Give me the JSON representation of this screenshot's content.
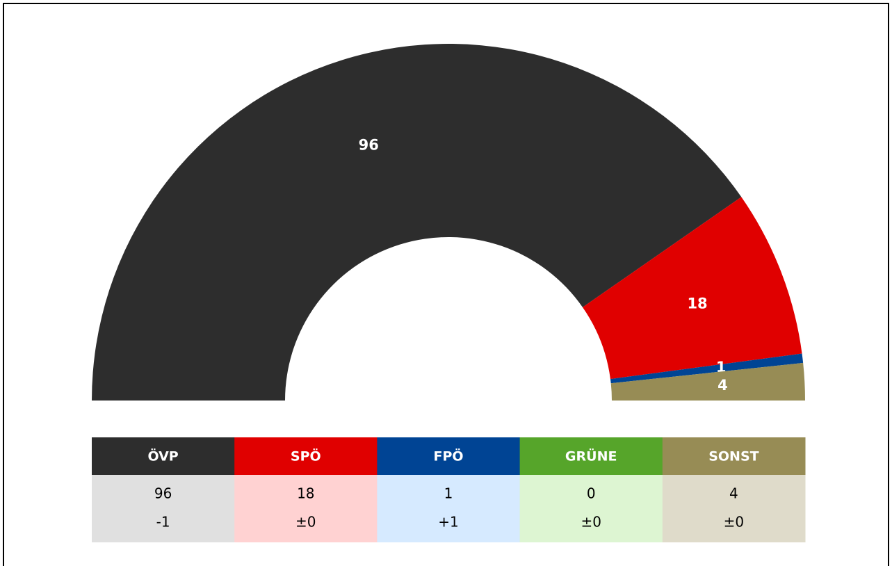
{
  "chart_data": {
    "type": "semicircle",
    "categories": [
      "ÖVP",
      "SPÖ",
      "FPÖ",
      "GRÜNE",
      "SONST"
    ],
    "values": [
      96,
      18,
      1,
      0,
      4
    ],
    "colors": [
      "#2d2d2d",
      "#e00000",
      "#004494",
      "#56a52a",
      "#978c55"
    ],
    "light_colors": [
      "#e0e0e0",
      "#ffd2d2",
      "#d6eaff",
      "#ddf5d2",
      "#dfdbca"
    ],
    "change_labels": [
      "-1",
      "±0",
      "+1",
      "±0",
      "±0"
    ]
  }
}
